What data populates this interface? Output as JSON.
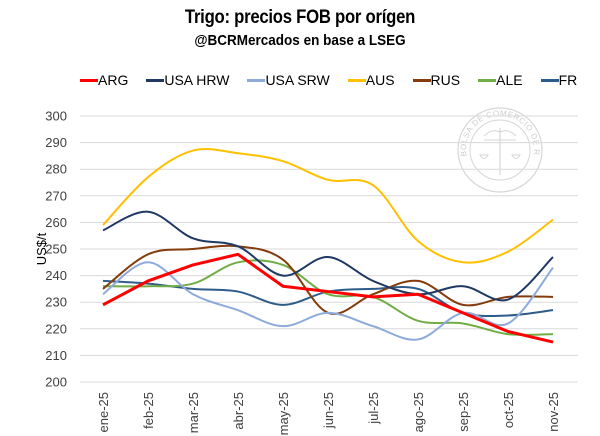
{
  "chart_data": {
    "type": "line",
    "title": "Trigo: precios FOB por orígen",
    "subtitle": "@BCRMercados en base a LSEG",
    "xlabel": "",
    "ylabel": "US$/t",
    "ylim": [
      200,
      300
    ],
    "yticks": [
      200,
      210,
      220,
      230,
      240,
      250,
      260,
      270,
      280,
      290,
      300
    ],
    "grid": true,
    "legend_position": "top",
    "smooth": true,
    "categories": [
      "ene-25",
      "feb-25",
      "mar-25",
      "abr-25",
      "may-25",
      "jun-25",
      "jul-25",
      "ago-25",
      "sep-25",
      "oct-25",
      "nov-25"
    ],
    "series": [
      {
        "name": "ARG",
        "color": "#ff0000",
        "smooth": false,
        "values": [
          229,
          238,
          244,
          248,
          236,
          234,
          232,
          233,
          226,
          219,
          215
        ]
      },
      {
        "name": "USA HRW",
        "color": "#1f3864",
        "smooth": true,
        "values": [
          257,
          264,
          254,
          251,
          240,
          247,
          238,
          233,
          236,
          231,
          247
        ]
      },
      {
        "name": "USA SRW",
        "color": "#8eaadb",
        "smooth": true,
        "values": [
          233,
          245,
          233,
          227,
          221,
          226,
          221,
          216,
          226,
          222,
          243
        ]
      },
      {
        "name": "AUS",
        "color": "#ffc000",
        "smooth": true,
        "values": [
          259,
          277,
          287,
          286,
          283,
          276,
          274,
          253,
          245,
          249,
          261
        ]
      },
      {
        "name": "RUS",
        "color": "#843c0c",
        "smooth": true,
        "values": [
          235,
          248,
          250,
          251,
          246,
          226,
          233,
          238,
          229,
          232,
          232
        ]
      },
      {
        "name": "ALE",
        "color": "#70ad47",
        "smooth": true,
        "values": [
          236,
          236,
          237,
          245,
          244,
          233,
          232,
          223,
          222,
          218,
          218
        ]
      },
      {
        "name": "FR",
        "color": "#2e5c8a",
        "smooth": true,
        "values": [
          238,
          237,
          235,
          234,
          229,
          234,
          235,
          235,
          226,
          225,
          227
        ]
      }
    ],
    "watermark": "BOLSA DE COMERCIO DE ROSARIO"
  }
}
